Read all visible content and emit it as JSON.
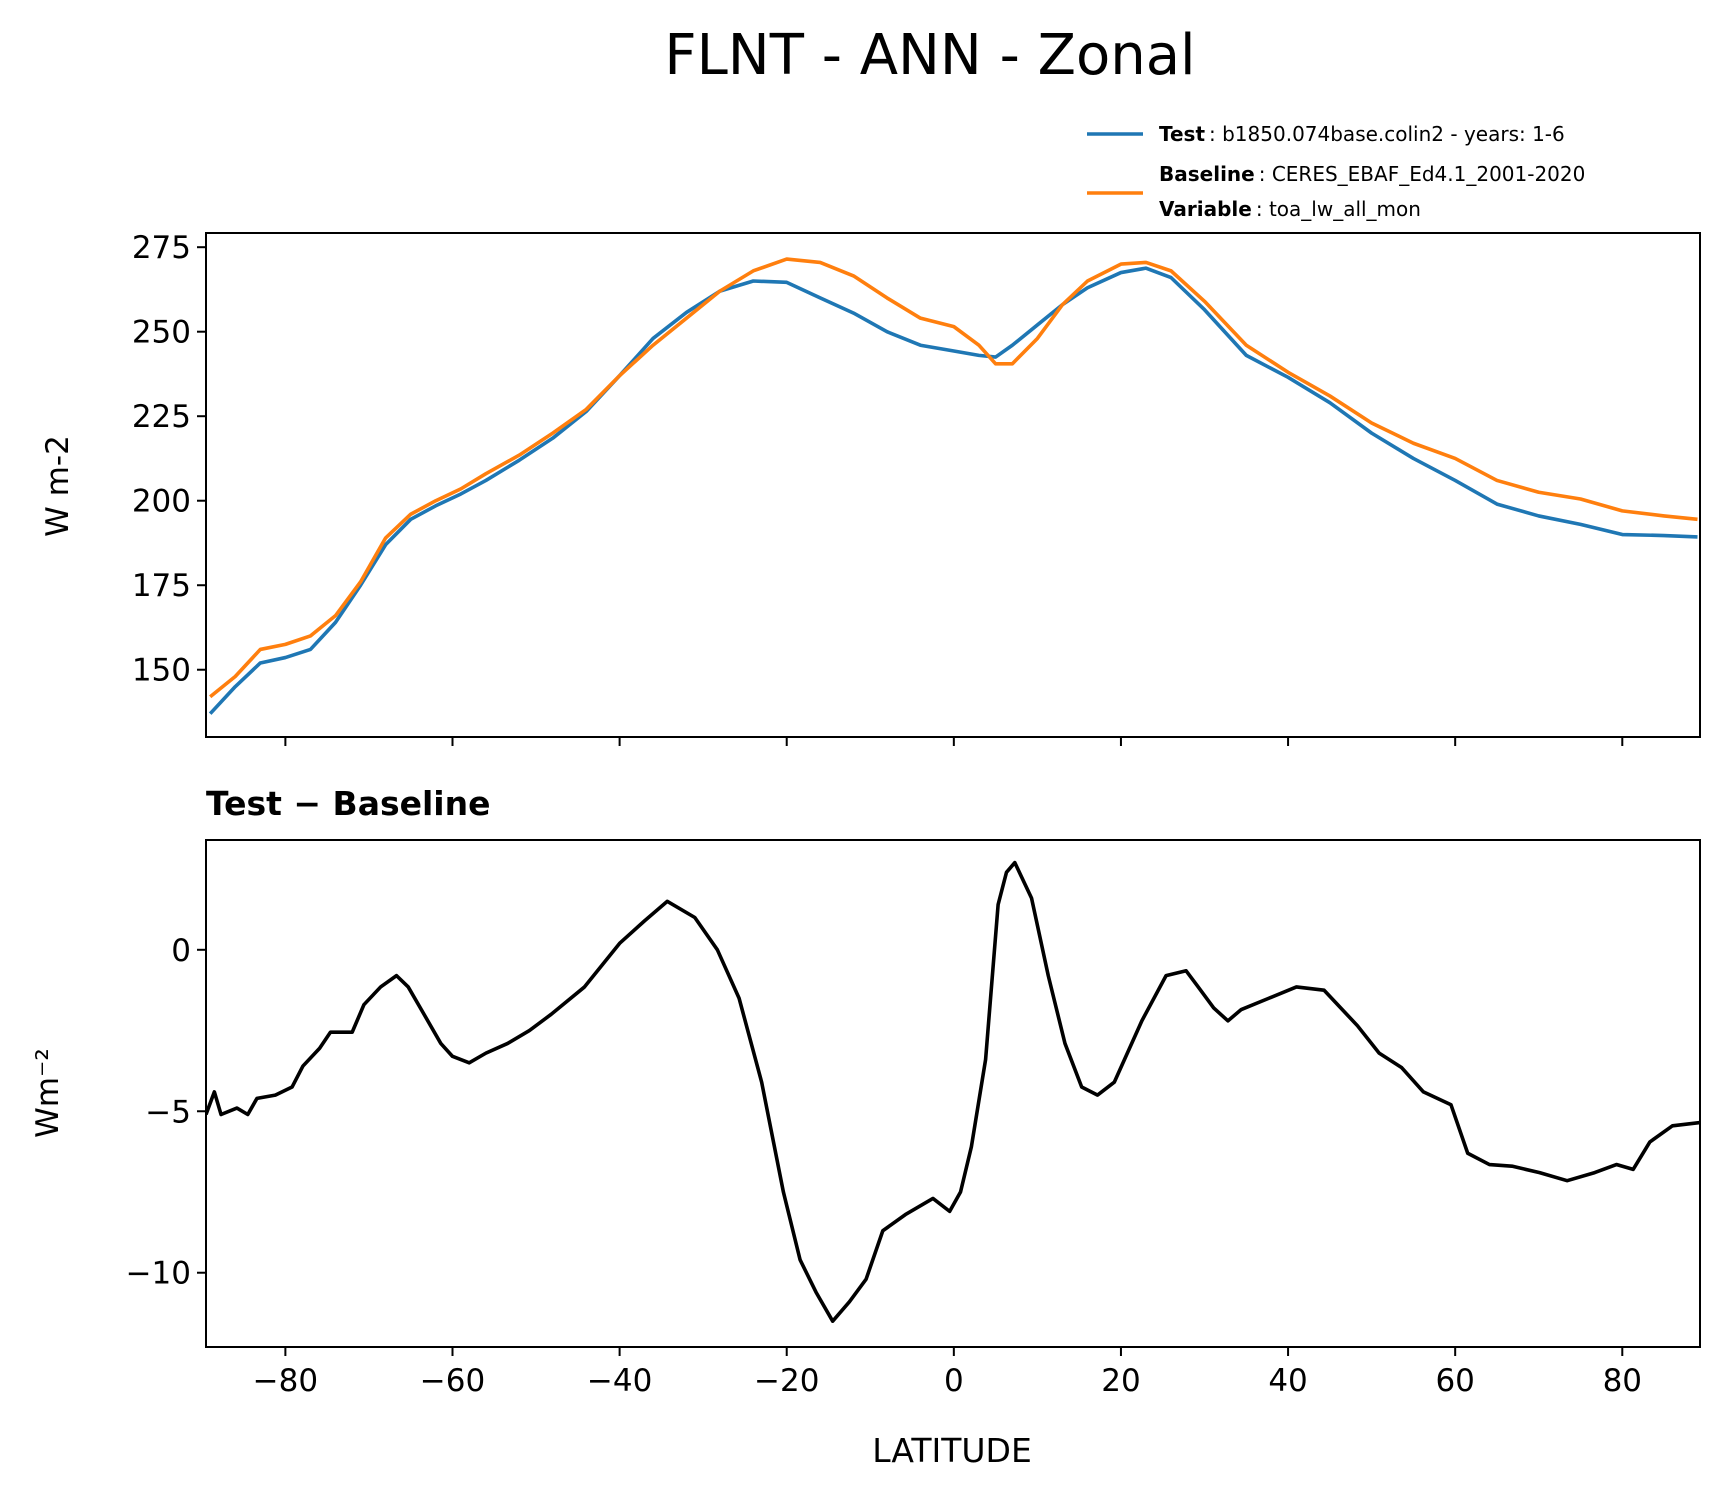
{
  "chart_data": [
    {
      "type": "line",
      "title": "FLNT - ANN - Zonal",
      "ylabel": "W m-2",
      "x": [
        -89,
        -86,
        -83,
        -80,
        -77,
        -74,
        -71,
        -68,
        -65,
        -62,
        -59,
        -56,
        -52,
        -48,
        -44,
        -40,
        -36,
        -32,
        -28,
        -24,
        -20,
        -16,
        -12,
        -8,
        -4,
        0,
        3,
        5,
        7,
        10,
        13,
        16,
        20,
        23,
        26,
        30,
        35,
        40,
        45,
        50,
        55,
        60,
        65,
        70,
        75,
        80,
        85,
        89
      ],
      "series": [
        {
          "name": "Test",
          "detail": ": b1850.074base.colin2 - years: 1-6",
          "color": "#1f77b4",
          "values": [
            137,
            145,
            152,
            153.6,
            156,
            164,
            175,
            187,
            194.5,
            198.5,
            202,
            206,
            212,
            218.5,
            226.4,
            237,
            248,
            255.7,
            262,
            265,
            264.6,
            260,
            255.5,
            250,
            246,
            244.3,
            243,
            242.5,
            246,
            252,
            258,
            263,
            267.5,
            268.8,
            266,
            256.5,
            243,
            236.5,
            229,
            220,
            212.5,
            206,
            199,
            195.5,
            193,
            190,
            189.7,
            189.3
          ]
        },
        {
          "name": "Baseline",
          "detail": ": CERES_EBAF_Ed4.1_2001-2020",
          "color": "#ff7f0e",
          "values": [
            142,
            148,
            156,
            157.5,
            160,
            166,
            176,
            189,
            196,
            200,
            203.5,
            208,
            213.5,
            220,
            227,
            237,
            246,
            254,
            262,
            268,
            271.5,
            270.5,
            266.5,
            260,
            254,
            251.5,
            246,
            240.5,
            240.5,
            248,
            258,
            265,
            270,
            270.5,
            268,
            259,
            246,
            238,
            231,
            223,
            217,
            212.5,
            206,
            202.5,
            200.5,
            197,
            195.5,
            194.5
          ]
        }
      ],
      "legend_note": {
        "name": "Variable",
        "text": ": toa_lw_all_mon"
      },
      "legend": "upper right",
      "xlim": [
        -89.5,
        89.3
      ],
      "ylim": [
        130.1,
        279.2
      ],
      "xticks": [
        -80,
        -60,
        -40,
        -20,
        0,
        20,
        40,
        60,
        80
      ],
      "xtick_labels": false,
      "yticks": [
        150,
        175,
        200,
        225,
        250,
        275
      ]
    },
    {
      "type": "line",
      "subtitle": "Test − Baseline",
      "ylabel": "Wm⁻²",
      "xlabel": "LATITUDE",
      "x": [
        -89.5,
        -88.5,
        -87.7,
        -85.8,
        -84.5,
        -83.4,
        -81.2,
        -79.2,
        -77.9,
        -75.9,
        -74.6,
        -72,
        -70.6,
        -68.6,
        -66.7,
        -65.3,
        -63.4,
        -61.4,
        -60,
        -58,
        -56,
        -53.4,
        -50.8,
        -48.2,
        -44.2,
        -40,
        -37,
        -34.3,
        -31,
        -28.3,
        -25.7,
        -23,
        -20.4,
        -18.4,
        -16.5,
        -14.5,
        -12.5,
        -10.5,
        -8.5,
        -5.8,
        -2.5,
        -0.5,
        0.8,
        2.1,
        3.8,
        5.3,
        6.3,
        7.3,
        9.3,
        11.3,
        13.3,
        15.3,
        17.2,
        19.2,
        22.5,
        25.4,
        27.8,
        29.1,
        31.1,
        32.8,
        34.4,
        37.7,
        41,
        44.3,
        48.3,
        50.9,
        53.6,
        56.2,
        59.5,
        61.5,
        64.1,
        66.8,
        70.1,
        73.4,
        76.7,
        79.3,
        81.3,
        83.3,
        86,
        89.3
      ],
      "series": [
        {
          "color": "#000000",
          "values": [
            -5.1,
            -4.4,
            -5.1,
            -4.9,
            -5.1,
            -4.6,
            -4.5,
            -4.25,
            -3.6,
            -3.05,
            -2.55,
            -2.55,
            -1.7,
            -1.15,
            -0.8,
            -1.15,
            -2.0,
            -2.9,
            -3.3,
            -3.5,
            -3.2,
            -2.9,
            -2.5,
            -2.0,
            -1.15,
            0.2,
            0.9,
            1.5,
            1.0,
            0.0,
            -1.5,
            -4.1,
            -7.5,
            -9.6,
            -10.6,
            -11.5,
            -10.9,
            -10.2,
            -8.7,
            -8.2,
            -7.7,
            -8.1,
            -7.5,
            -6.1,
            -3.4,
            1.4,
            2.4,
            2.7,
            1.6,
            -0.8,
            -2.9,
            -4.25,
            -4.5,
            -4.1,
            -2.2,
            -0.8,
            -0.65,
            -1.1,
            -1.8,
            -2.2,
            -1.85,
            -1.5,
            -1.15,
            -1.25,
            -2.35,
            -3.2,
            -3.65,
            -4.4,
            -4.8,
            -6.3,
            -6.65,
            -6.7,
            -6.9,
            -7.15,
            -6.9,
            -6.65,
            -6.8,
            -5.95,
            -5.45,
            -5.35
          ]
        }
      ],
      "xlim": [
        -89.5,
        89.3
      ],
      "ylim": [
        -12.3,
        3.4
      ],
      "xticks": [
        {
          "value": -80,
          "label": "−80"
        },
        {
          "value": -60,
          "label": "−60"
        },
        {
          "value": -40,
          "label": "−40"
        },
        {
          "value": -20,
          "label": "−20"
        },
        0,
        20,
        40,
        60,
        80
      ],
      "yticks": [
        {
          "value": -10,
          "label": "−10"
        },
        {
          "value": -5,
          "label": "−5"
        },
        0
      ]
    }
  ]
}
